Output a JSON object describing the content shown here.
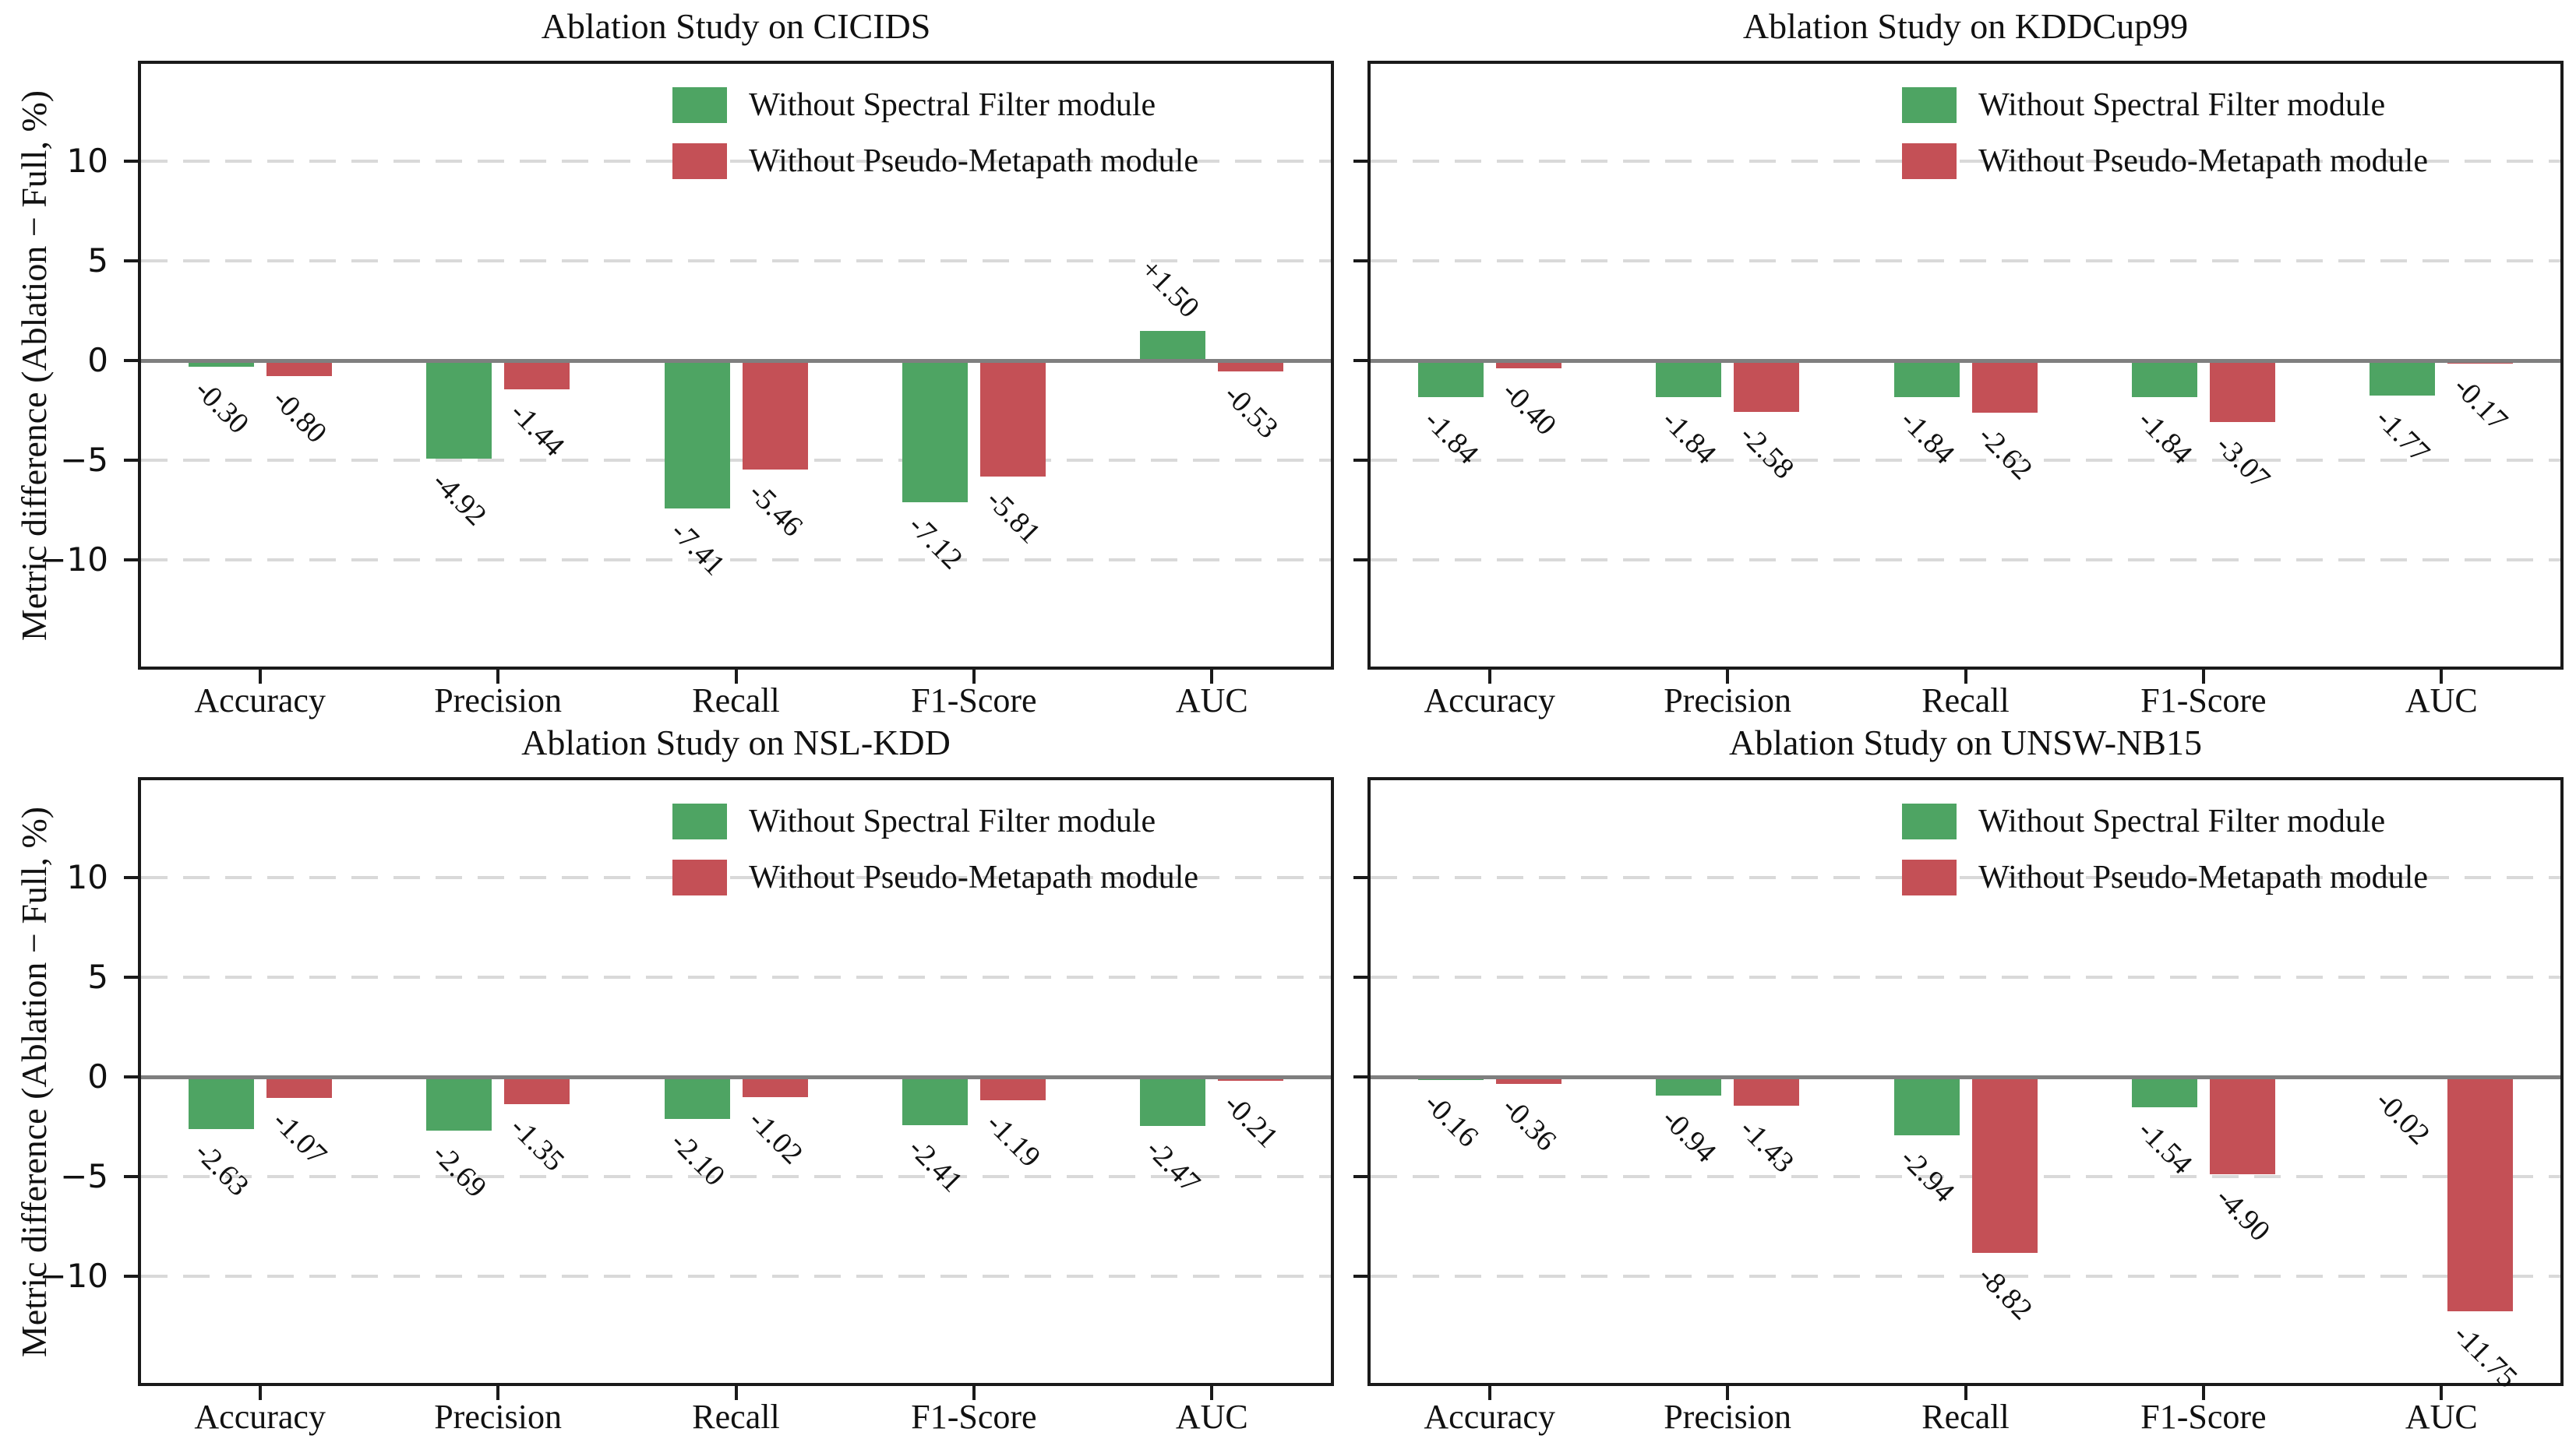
{
  "figure": {
    "background": "#ffffff",
    "text_color": "#111111"
  },
  "colors": {
    "spectral_green": "#4ea463",
    "metapath_red": "#c45056",
    "zero_line": "#7f7f7f",
    "grid": "#d9d9d9",
    "spine": "#1a1a1a"
  },
  "legend": {
    "items": [
      {
        "label": "Without Spectral Filter module",
        "color": "#4ea463"
      },
      {
        "label": "Without Pseudo-Metapath module",
        "color": "#c45056"
      }
    ],
    "position": "upper right",
    "frame": false
  },
  "y_axis": {
    "label": "Metric difference (Ablation − Full, %)",
    "ticks": [
      10,
      5,
      0,
      -5,
      -10
    ],
    "tick_labels": [
      "10",
      "5",
      "0",
      "−5",
      "−10"
    ]
  },
  "categories": [
    "Accuracy",
    "Precision",
    "Recall",
    "F1-Score",
    "AUC"
  ],
  "chart_data": [
    {
      "type": "bar",
      "title": "Ablation Study on CICIDS",
      "ylabel": "Metric difference (Ablation − Full, %)",
      "categories": [
        "Accuracy",
        "Precision",
        "Recall",
        "F1-Score",
        "AUC"
      ],
      "series": [
        {
          "name": "Without Spectral Filter module",
          "color": "#4ea463",
          "values": [
            -0.3,
            -4.92,
            -7.41,
            -7.12,
            1.5
          ],
          "labels": [
            "-0.30",
            "-4.92",
            "-7.41",
            "-7.12",
            "+1.50"
          ]
        },
        {
          "name": "Without Pseudo-Metapath module",
          "color": "#c45056",
          "values": [
            -0.8,
            -1.44,
            -5.46,
            -5.81,
            -0.53
          ],
          "labels": [
            "-0.80",
            "-1.44",
            "-5.46",
            "-5.81",
            "-0.53"
          ]
        }
      ],
      "yticks": [
        10,
        5,
        0,
        -5,
        -10
      ],
      "ylim": [
        -15.5,
        15.0
      ],
      "grid": true,
      "legend_position": "upper right",
      "show_ytick_labels": true
    },
    {
      "type": "bar",
      "title": "Ablation Study on KDDCup99",
      "ylabel": "",
      "categories": [
        "Accuracy",
        "Precision",
        "Recall",
        "F1-Score",
        "AUC"
      ],
      "series": [
        {
          "name": "Without Spectral Filter module",
          "color": "#4ea463",
          "values": [
            -1.84,
            -1.84,
            -1.84,
            -1.84,
            -1.77
          ],
          "labels": [
            "-1.84",
            "-1.84",
            "-1.84",
            "-1.84",
            "-1.77"
          ]
        },
        {
          "name": "Without Pseudo-Metapath module",
          "color": "#c45056",
          "values": [
            -0.4,
            -2.58,
            -2.62,
            -3.07,
            -0.17
          ],
          "labels": [
            "-0.40",
            "-2.58",
            "-2.62",
            "-3.07",
            "-0.17"
          ]
        }
      ],
      "yticks": [
        10,
        5,
        0,
        -5,
        -10
      ],
      "ylim": [
        -15.5,
        15.0
      ],
      "grid": true,
      "legend_position": "upper right",
      "show_ytick_labels": false
    },
    {
      "type": "bar",
      "title": "Ablation Study on NSL-KDD",
      "ylabel": "Metric difference (Ablation − Full, %)",
      "categories": [
        "Accuracy",
        "Precision",
        "Recall",
        "F1-Score",
        "AUC"
      ],
      "series": [
        {
          "name": "Without Spectral Filter module",
          "color": "#4ea463",
          "values": [
            -2.63,
            -2.69,
            -2.1,
            -2.41,
            -2.47
          ],
          "labels": [
            "-2.63",
            "-2.69",
            "-2.10",
            "-2.41",
            "-2.47"
          ]
        },
        {
          "name": "Without Pseudo-Metapath module",
          "color": "#c45056",
          "values": [
            -1.07,
            -1.35,
            -1.02,
            -1.19,
            -0.21
          ],
          "labels": [
            "-1.07",
            "-1.35",
            "-1.02",
            "-1.19",
            "-0.21"
          ]
        }
      ],
      "yticks": [
        10,
        5,
        0,
        -5,
        -10
      ],
      "ylim": [
        -15.5,
        15.0
      ],
      "grid": true,
      "legend_position": "upper right",
      "show_ytick_labels": true
    },
    {
      "type": "bar",
      "title": "Ablation Study on UNSW-NB15",
      "ylabel": "",
      "categories": [
        "Accuracy",
        "Precision",
        "Recall",
        "F1-Score",
        "AUC"
      ],
      "series": [
        {
          "name": "Without Spectral Filter module",
          "color": "#4ea463",
          "values": [
            -0.16,
            -0.94,
            -2.94,
            -1.54,
            -0.02
          ],
          "labels": [
            "-0.16",
            "-0.94",
            "-2.94",
            "-1.54",
            "-0.02"
          ]
        },
        {
          "name": "Without Pseudo-Metapath module",
          "color": "#c45056",
          "values": [
            -0.36,
            -1.43,
            -8.82,
            -4.9,
            -11.75
          ],
          "labels": [
            "-0.36",
            "-1.43",
            "-8.82",
            "-4.90",
            "-11.75"
          ]
        }
      ],
      "yticks": [
        10,
        5,
        0,
        -5,
        -10
      ],
      "ylim": [
        -15.5,
        15.0
      ],
      "grid": true,
      "legend_position": "upper right",
      "show_ytick_labels": false
    }
  ]
}
